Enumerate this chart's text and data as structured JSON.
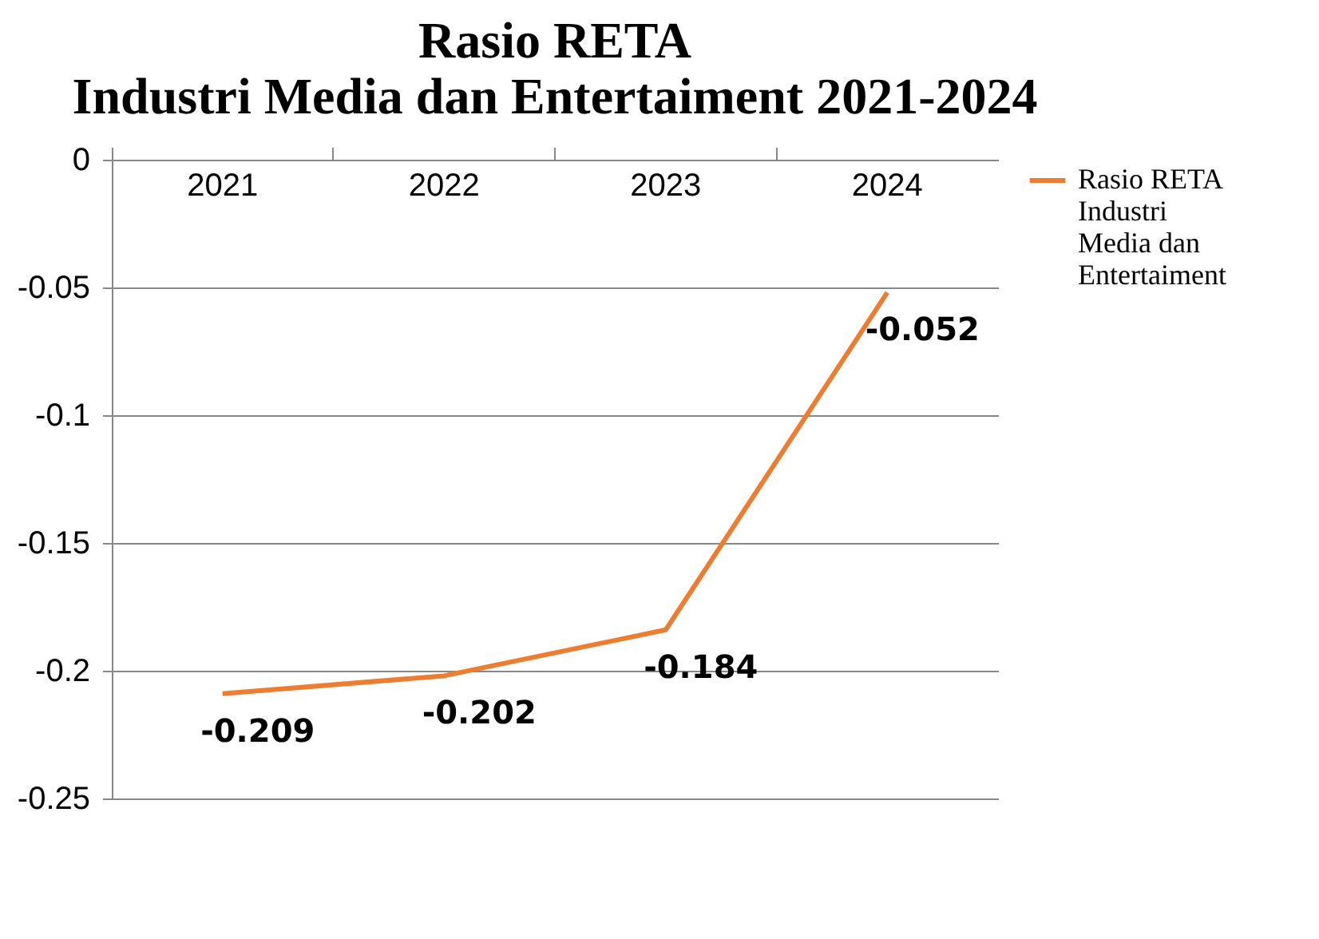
{
  "chart_data": {
    "type": "line",
    "title": "Rasio RETA",
    "subtitle": "Industri Media dan Entertaiment 2021-2024",
    "categories": [
      "2021",
      "2022",
      "2023",
      "2024"
    ],
    "series": [
      {
        "name": "Rasio RETA Industri Media dan Entertaiment",
        "color": "#ed7d31",
        "values": [
          -0.209,
          -0.202,
          -0.184,
          -0.052
        ]
      }
    ],
    "ylim": [
      -0.25,
      0
    ],
    "yticks": [
      -0.25,
      -0.2,
      -0.15,
      -0.1,
      -0.05,
      0
    ],
    "grid": "y",
    "legend": "right",
    "marker": "none",
    "line_style": "solid",
    "data_labels": true
  }
}
